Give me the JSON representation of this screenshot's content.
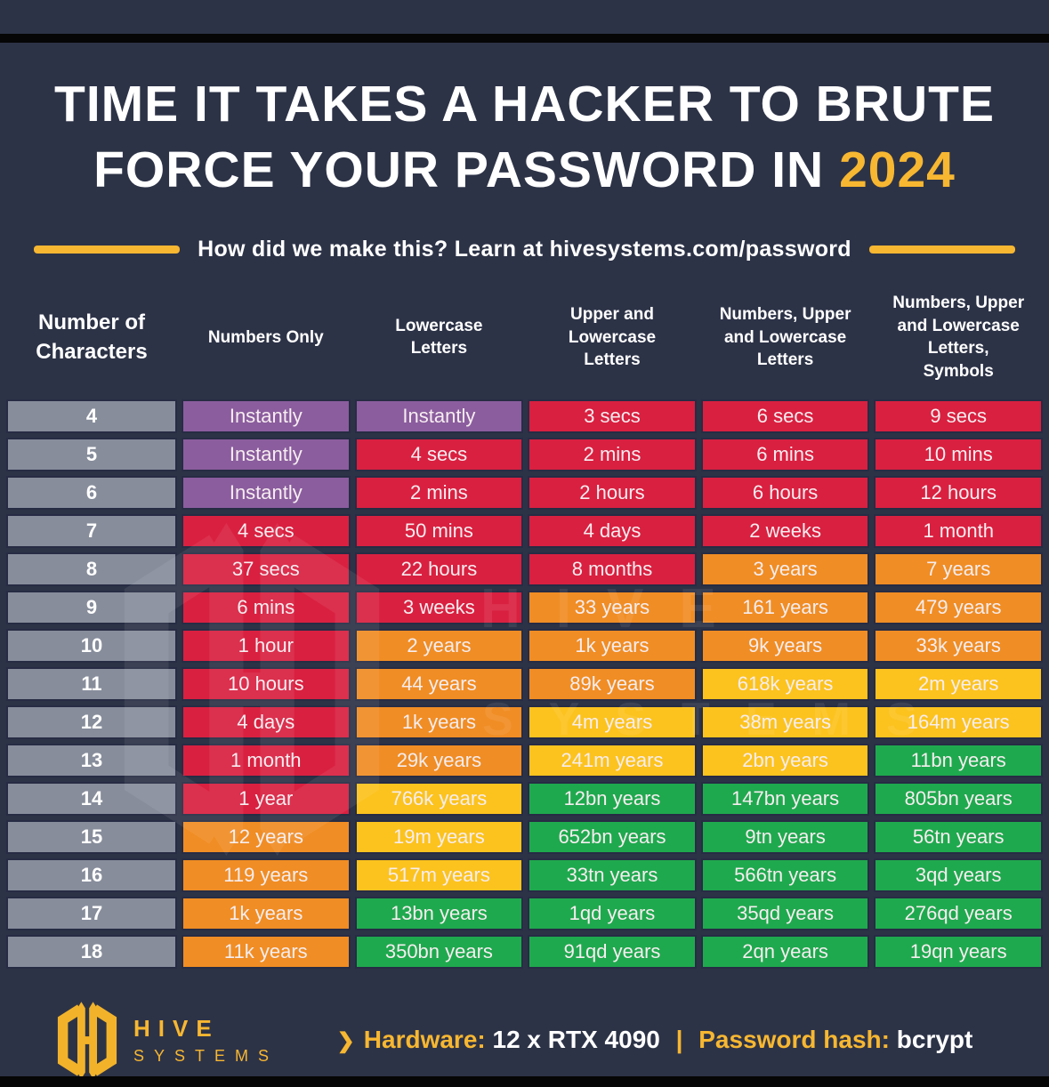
{
  "header": {
    "title_line1": "TIME IT TAKES A HACKER TO BRUTE",
    "title_line2_prefix": "FORCE YOUR PASSWORD IN",
    "title_year": "2024",
    "subtitle": "How did we make this? Learn at hivesystems.com/password"
  },
  "colors": {
    "background": "#2d3347",
    "accent": "#f7b731",
    "black_bar": "#060606",
    "header_text": "#ffffff",
    "cell_text": "#f6edf0"
  },
  "chart_data": {
    "type": "table",
    "title": "Time it takes a hacker to brute force your password in 2024",
    "columns": [
      "Number of Characters",
      "Numbers Only",
      "Lowercase Letters",
      "Upper and Lowercase Letters",
      "Numbers, Upper and Lowercase Letters",
      "Numbers, Upper and Lowercase Letters, Symbols"
    ],
    "color_legend": {
      "gray": "#878d9b",
      "purple": "#8b5d9e",
      "red": "#d92040",
      "orange": "#f08d24",
      "yellow": "#fcc31e",
      "green": "#1fa94e"
    },
    "rows": [
      {
        "chars": "4",
        "cells": [
          [
            "Instantly",
            "purple"
          ],
          [
            "Instantly",
            "purple"
          ],
          [
            "3 secs",
            "red"
          ],
          [
            "6 secs",
            "red"
          ],
          [
            "9 secs",
            "red"
          ]
        ]
      },
      {
        "chars": "5",
        "cells": [
          [
            "Instantly",
            "purple"
          ],
          [
            "4 secs",
            "red"
          ],
          [
            "2 mins",
            "red"
          ],
          [
            "6 mins",
            "red"
          ],
          [
            "10 mins",
            "red"
          ]
        ]
      },
      {
        "chars": "6",
        "cells": [
          [
            "Instantly",
            "purple"
          ],
          [
            "2 mins",
            "red"
          ],
          [
            "2 hours",
            "red"
          ],
          [
            "6 hours",
            "red"
          ],
          [
            "12 hours",
            "red"
          ]
        ]
      },
      {
        "chars": "7",
        "cells": [
          [
            "4 secs",
            "red"
          ],
          [
            "50 mins",
            "red"
          ],
          [
            "4 days",
            "red"
          ],
          [
            "2 weeks",
            "red"
          ],
          [
            "1 month",
            "red"
          ]
        ]
      },
      {
        "chars": "8",
        "cells": [
          [
            "37 secs",
            "red"
          ],
          [
            "22 hours",
            "red"
          ],
          [
            "8 months",
            "red"
          ],
          [
            "3 years",
            "orange"
          ],
          [
            "7 years",
            "orange"
          ]
        ]
      },
      {
        "chars": "9",
        "cells": [
          [
            "6 mins",
            "red"
          ],
          [
            "3 weeks",
            "red"
          ],
          [
            "33 years",
            "orange"
          ],
          [
            "161 years",
            "orange"
          ],
          [
            "479 years",
            "orange"
          ]
        ]
      },
      {
        "chars": "10",
        "cells": [
          [
            "1 hour",
            "red"
          ],
          [
            "2 years",
            "orange"
          ],
          [
            "1k years",
            "orange"
          ],
          [
            "9k years",
            "orange"
          ],
          [
            "33k years",
            "orange"
          ]
        ]
      },
      {
        "chars": "11",
        "cells": [
          [
            "10 hours",
            "red"
          ],
          [
            "44 years",
            "orange"
          ],
          [
            "89k years",
            "orange"
          ],
          [
            "618k years",
            "yellow"
          ],
          [
            "2m years",
            "yellow"
          ]
        ]
      },
      {
        "chars": "12",
        "cells": [
          [
            "4 days",
            "red"
          ],
          [
            "1k years",
            "orange"
          ],
          [
            "4m years",
            "yellow"
          ],
          [
            "38m years",
            "yellow"
          ],
          [
            "164m years",
            "yellow"
          ]
        ]
      },
      {
        "chars": "13",
        "cells": [
          [
            "1 month",
            "red"
          ],
          [
            "29k years",
            "orange"
          ],
          [
            "241m years",
            "yellow"
          ],
          [
            "2bn years",
            "yellow"
          ],
          [
            "11bn years",
            "green"
          ]
        ]
      },
      {
        "chars": "14",
        "cells": [
          [
            "1 year",
            "red"
          ],
          [
            "766k years",
            "yellow"
          ],
          [
            "12bn years",
            "green"
          ],
          [
            "147bn years",
            "green"
          ],
          [
            "805bn years",
            "green"
          ]
        ]
      },
      {
        "chars": "15",
        "cells": [
          [
            "12 years",
            "orange"
          ],
          [
            "19m years",
            "yellow"
          ],
          [
            "652bn years",
            "green"
          ],
          [
            "9tn years",
            "green"
          ],
          [
            "56tn years",
            "green"
          ]
        ]
      },
      {
        "chars": "16",
        "cells": [
          [
            "119 years",
            "orange"
          ],
          [
            "517m years",
            "yellow"
          ],
          [
            "33tn years",
            "green"
          ],
          [
            "566tn years",
            "green"
          ],
          [
            "3qd years",
            "green"
          ]
        ]
      },
      {
        "chars": "17",
        "cells": [
          [
            "1k years",
            "orange"
          ],
          [
            "13bn years",
            "green"
          ],
          [
            "1qd years",
            "green"
          ],
          [
            "35qd years",
            "green"
          ],
          [
            "276qd years",
            "green"
          ]
        ]
      },
      {
        "chars": "18",
        "cells": [
          [
            "11k years",
            "orange"
          ],
          [
            "350bn years",
            "green"
          ],
          [
            "91qd years",
            "green"
          ],
          [
            "2qn years",
            "green"
          ],
          [
            "19qn years",
            "green"
          ]
        ]
      }
    ]
  },
  "watermark": {
    "line1": "HIVE",
    "line2": "SYSTEMS"
  },
  "footer": {
    "brand_name": "HIVE",
    "brand_sub": "SYSTEMS",
    "chevron": "❯",
    "hardware_label": "Hardware:",
    "hardware_value": "12 x RTX 4090",
    "separator": "|",
    "hash_label": "Password hash:",
    "hash_value": "bcrypt"
  }
}
